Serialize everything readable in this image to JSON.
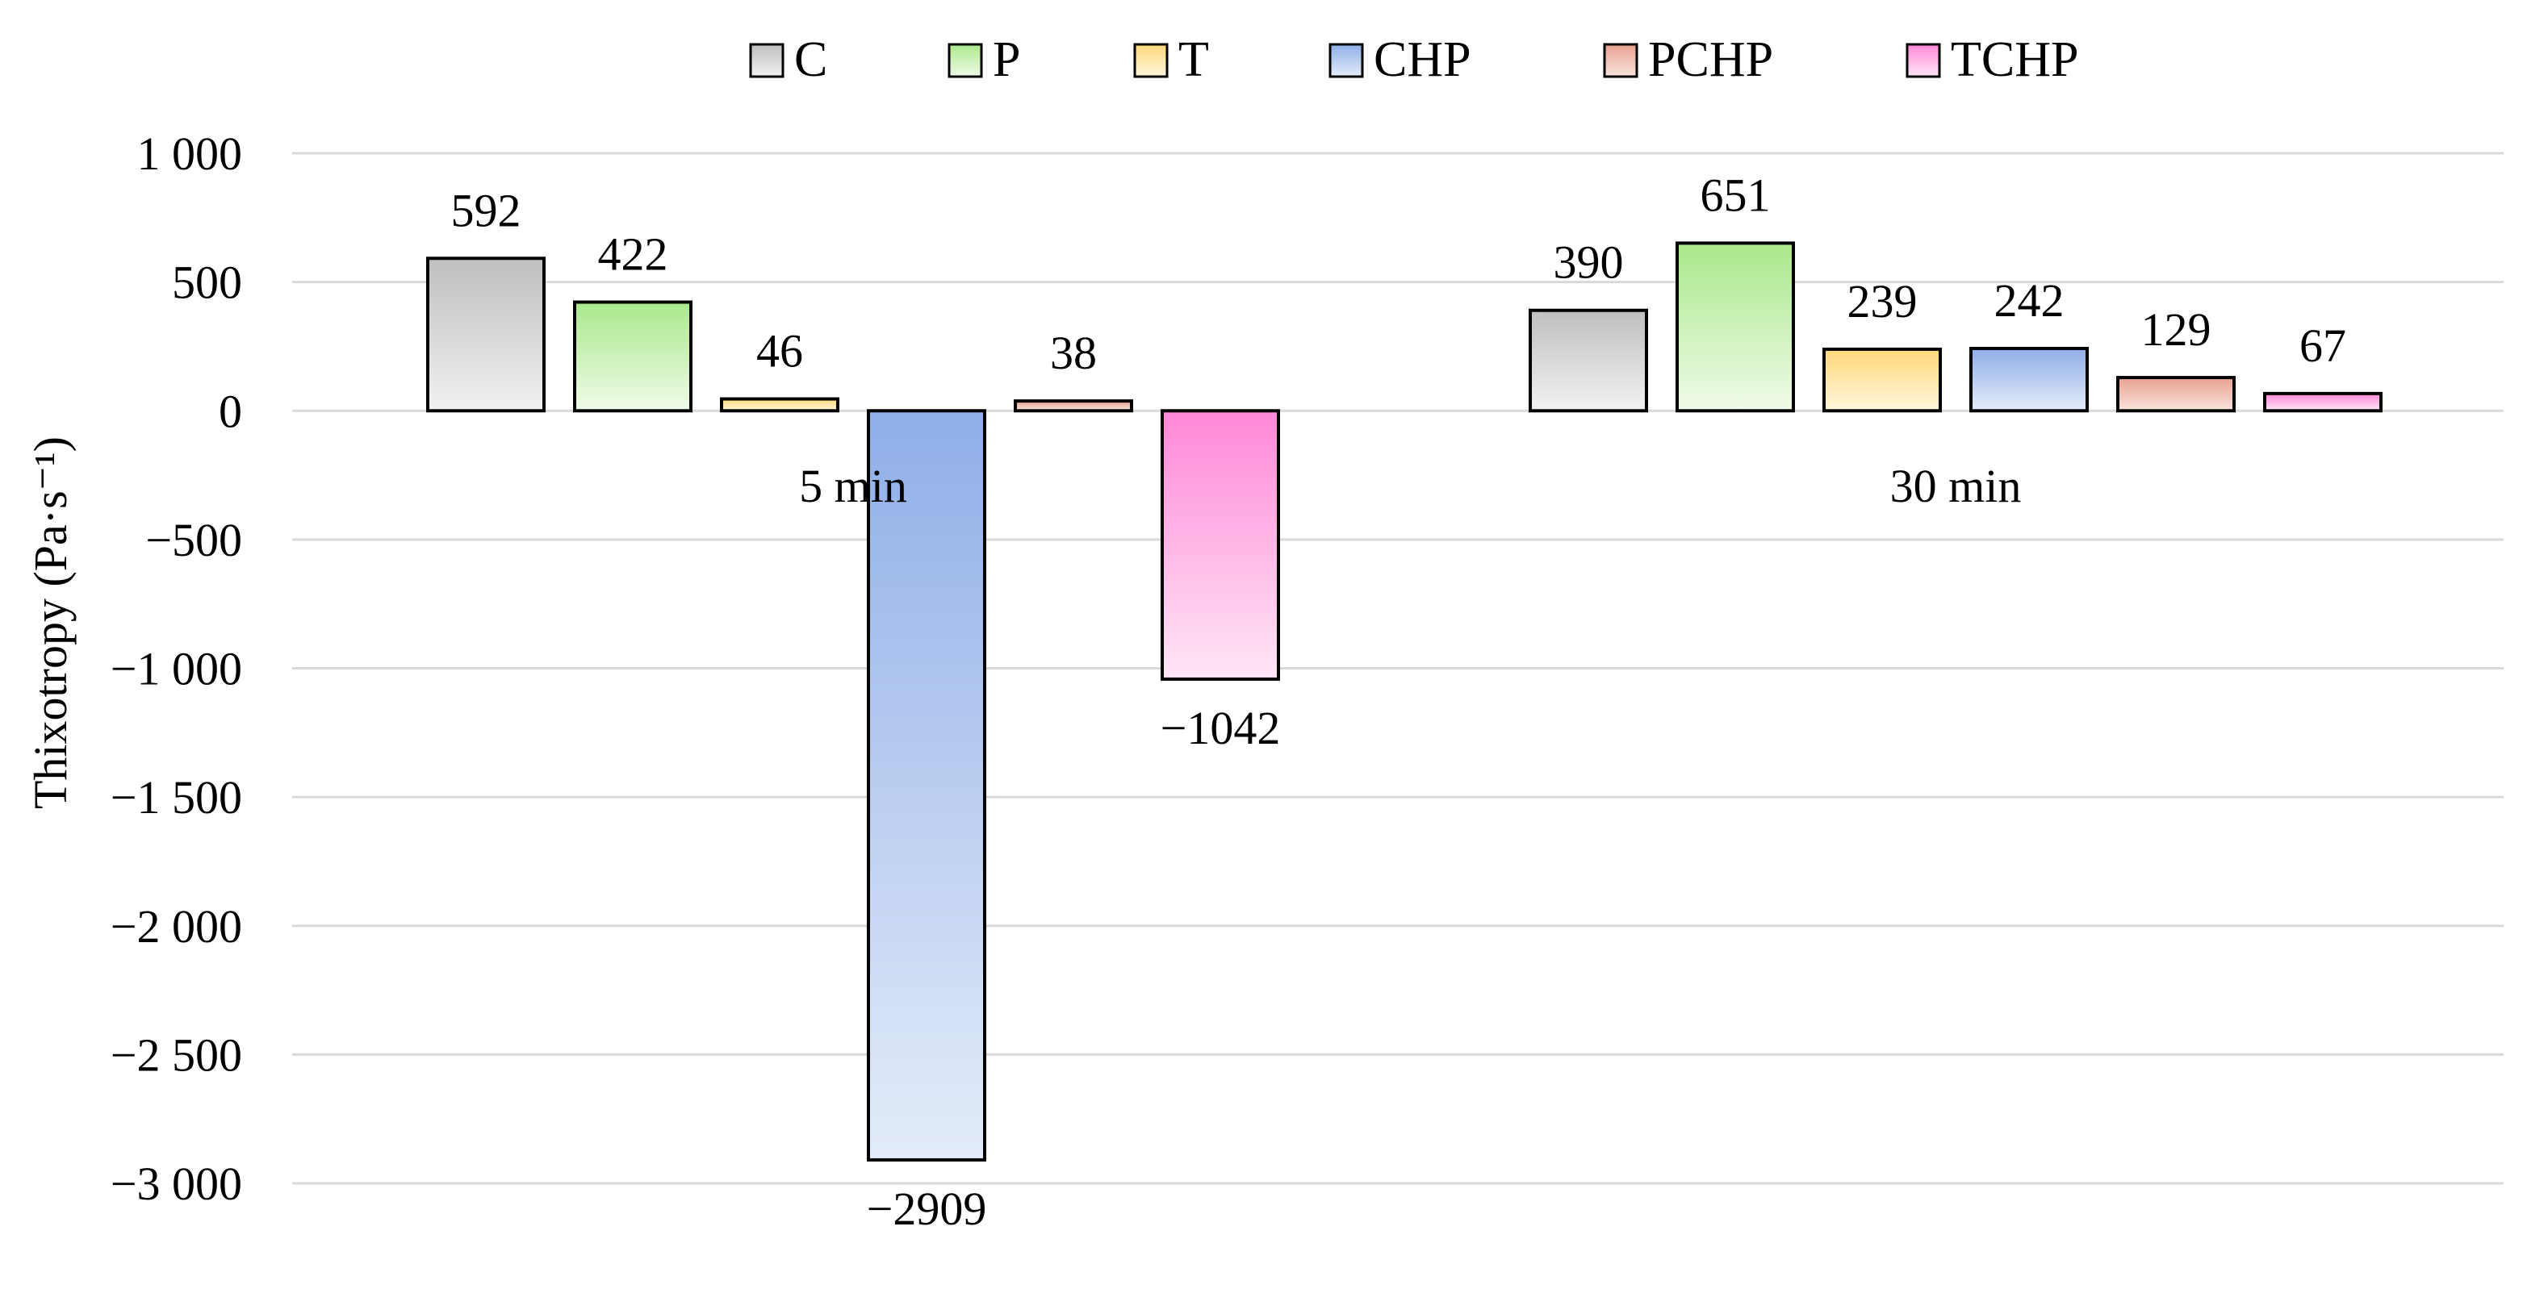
{
  "chart_data": {
    "type": "bar",
    "categories": [
      "5 min",
      "30 min"
    ],
    "series": [
      {
        "name": "C",
        "values": [
          592,
          390
        ],
        "color_top": "#bfbfbf",
        "color_bottom": "#f2f2f2"
      },
      {
        "name": "P",
        "values": [
          422,
          651
        ],
        "color_top": "#a9e88b",
        "color_bottom": "#f0fbe8"
      },
      {
        "name": "T",
        "values": [
          46,
          239
        ],
        "color_top": "#ffd97a",
        "color_bottom": "#fff6dc"
      },
      {
        "name": "CHP",
        "values": [
          -2909,
          242
        ],
        "color_top": "#8faee8",
        "color_bottom": "#e4ecf9"
      },
      {
        "name": "PCHP",
        "values": [
          38,
          129
        ],
        "color_top": "#e8a08f",
        "color_bottom": "#f9e4dd"
      },
      {
        "name": "TCHP",
        "values": [
          -1042,
          67
        ],
        "color_top": "#ff88d8",
        "color_bottom": "#ffe6f6"
      }
    ],
    "data_labels": [
      [
        "592",
        "390"
      ],
      [
        "422",
        "651"
      ],
      [
        "46",
        "239"
      ],
      [
        "−2909",
        "242"
      ],
      [
        "38",
        "129"
      ],
      [
        "−1042",
        "67"
      ]
    ],
    "yticks": [
      1000,
      500,
      0,
      -500,
      -1000,
      -1500,
      -2000,
      -2500,
      -3000
    ],
    "ytick_labels": [
      "1 000",
      "500",
      "0",
      "−500",
      "−1 000",
      "−1 500",
      "−2 000",
      "−2 500",
      "−3 000"
    ],
    "ylim": [
      -3000,
      1000
    ],
    "ylabel": "Thixotropy (Pa·s⁻¹)",
    "xlabel": "",
    "title": "",
    "grid": true,
    "legend_position": "top"
  }
}
